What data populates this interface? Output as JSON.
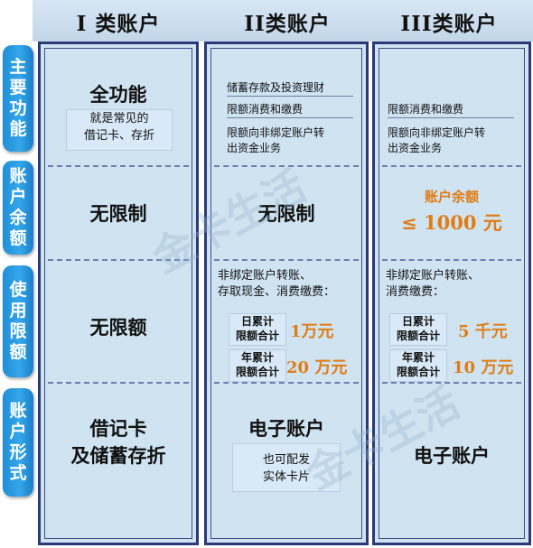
{
  "headers": [
    "I 类账户",
    "II类账户",
    "III类账户"
  ],
  "row_labels": [
    [
      "主",
      "要",
      "功",
      "能"
    ],
    [
      "账",
      "户",
      "余",
      "额"
    ],
    [
      "使",
      "用",
      "限",
      "额"
    ],
    [
      "账",
      "户",
      "形",
      "式"
    ]
  ],
  "col1": {
    "function": "全功能",
    "function_note_1": "就是常见的",
    "function_note_2": "借记卡、存折",
    "balance": "无限制",
    "limit": "无限额",
    "form_1": "借记卡",
    "form_2": "及储蓄存折"
  },
  "col2": {
    "func_1": "储蓄存款及投资理财",
    "func_2": "限额消费和缴费",
    "func_3a": "限额向非绑定账户转",
    "func_3b": "出资金业务",
    "balance": "无限制",
    "limit_note_1": "非绑定账户转账、",
    "limit_note_2": "存取现金、消费缴费：",
    "daily_label_1": "日累计",
    "daily_label_2": "限额合计",
    "daily_value": "1万元",
    "yearly_label_1": "年累计",
    "yearly_label_2": "限额合计",
    "yearly_value": "20 万元",
    "form": "电子账户",
    "form_note_1": "也可配发",
    "form_note_2": "实体卡片"
  },
  "col3": {
    "func_1": "限额消费和缴费",
    "func_2a": "限额向非绑定账户转",
    "func_2b": "出资金业务",
    "balance_label": "账户余额",
    "balance_value": "≤ 1000 元",
    "limit_note_1": "非绑定账户转账、",
    "limit_note_2": "消费缴费：",
    "daily_label_1": "日累计",
    "daily_label_2": "限额合计",
    "daily_value": "5 千元",
    "yearly_label_1": "年累计",
    "yearly_label_2": "限额合计",
    "yearly_value": "10 万元",
    "form": "电子账户"
  },
  "watermark": "金卡生活",
  "colors": {
    "accent_orange": "#e07d15",
    "label_blue": "#2797df",
    "column_bg": "#cfe3f1",
    "border_navy": "#2a3a78"
  }
}
